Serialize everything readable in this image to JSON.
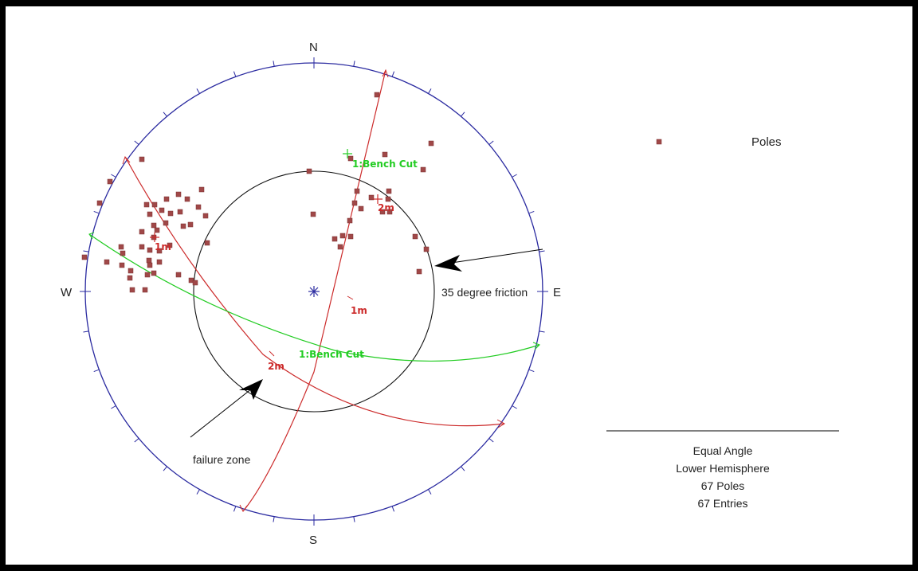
{
  "compass": {
    "north": "N",
    "south": "S",
    "east": "E",
    "west": "W"
  },
  "legend": {
    "label": "Poles",
    "marker_color": "#a04848"
  },
  "colors": {
    "primitive": "#2a2aa0",
    "poles": "#a04848",
    "bench_plane": "#22cc22",
    "joint_planes": "#cc2b2b",
    "friction_circle": "#111111"
  },
  "annotations": {
    "friction": "35 degree friction",
    "failure": "failure zone"
  },
  "planes": {
    "bench_cut": "1:Bench Cut",
    "set1": "1m",
    "set2": "2m"
  },
  "info": {
    "projection": "Equal Angle",
    "hemisphere": "Lower Hemisphere",
    "poles_count": "67 Poles",
    "entries_count": "67 Entries"
  }
}
